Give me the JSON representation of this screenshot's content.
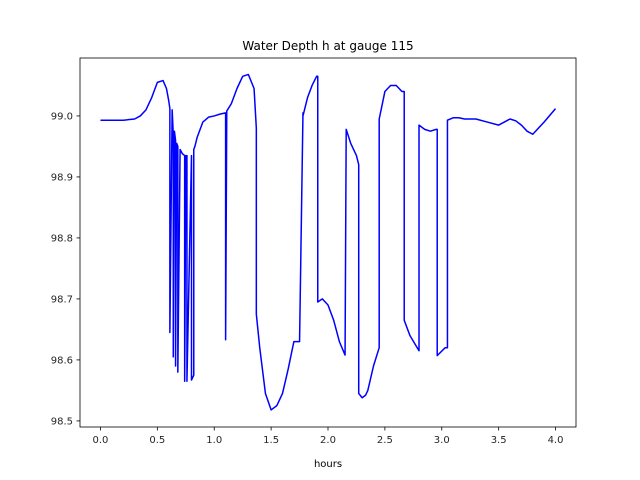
{
  "chart_data": {
    "type": "line",
    "title": "Water Depth h at gauge 115",
    "xlabel": "hours",
    "ylabel": "",
    "xlim": [
      -0.18,
      4.18
    ],
    "ylim": [
      98.49,
      99.095
    ],
    "xticks": [
      0.0,
      0.5,
      1.0,
      1.5,
      2.0,
      2.5,
      3.0,
      3.5,
      4.0
    ],
    "xtick_labels": [
      "0.0",
      "0.5",
      "1.0",
      "1.5",
      "2.0",
      "2.5",
      "3.0",
      "3.5",
      "4.0"
    ],
    "yticks": [
      98.5,
      98.6,
      98.7,
      98.8,
      98.9,
      99.0
    ],
    "ytick_labels": [
      "98.5",
      "98.6",
      "98.7",
      "98.8",
      "98.9",
      "99.0"
    ],
    "grid": false,
    "series": [
      {
        "color": "#0000ff",
        "x": [
          0.0,
          0.1,
          0.2,
          0.3,
          0.35,
          0.4,
          0.45,
          0.5,
          0.55,
          0.58,
          0.6,
          0.61,
          0.61,
          0.63,
          0.64,
          0.64,
          0.65,
          0.66,
          0.66,
          0.67,
          0.68,
          0.68,
          0.7,
          0.72,
          0.74,
          0.74,
          0.75,
          0.76,
          0.76,
          0.8,
          0.8,
          0.82,
          0.82,
          0.83,
          0.85,
          0.9,
          0.95,
          1.0,
          1.05,
          1.1,
          1.1,
          1.11,
          1.11,
          1.15,
          1.2,
          1.25,
          1.3,
          1.35,
          1.37,
          1.37,
          1.4,
          1.45,
          1.5,
          1.55,
          1.6,
          1.65,
          1.7,
          1.75,
          1.78,
          1.78,
          1.82,
          1.86,
          1.9,
          1.91,
          1.91,
          1.95,
          2.0,
          2.05,
          2.1,
          2.15,
          2.16,
          2.16,
          2.2,
          2.25,
          2.27,
          2.27,
          2.3,
          2.33,
          2.35,
          2.4,
          2.45,
          2.45,
          2.5,
          2.55,
          2.6,
          2.65,
          2.67,
          2.67,
          2.72,
          2.8,
          2.8,
          2.85,
          2.9,
          2.95,
          2.96,
          2.96,
          3.03,
          3.05,
          3.05,
          3.1,
          3.15,
          3.2,
          3.3,
          3.4,
          3.5,
          3.55,
          3.6,
          3.65,
          3.7,
          3.75,
          3.8,
          3.85,
          3.9,
          4.0
        ],
        "y": [
          98.993,
          98.993,
          98.993,
          98.995,
          99.0,
          99.01,
          99.03,
          99.055,
          99.058,
          99.045,
          99.025,
          99.012,
          98.645,
          99.01,
          98.97,
          98.605,
          98.975,
          98.96,
          98.59,
          98.955,
          98.95,
          98.58,
          98.945,
          98.938,
          98.935,
          98.565,
          98.935,
          98.935,
          98.565,
          98.935,
          98.567,
          98.575,
          98.945,
          98.95,
          98.965,
          98.99,
          98.998,
          99.0,
          99.003,
          99.005,
          98.633,
          99.005,
          99.008,
          99.02,
          99.045,
          99.065,
          99.068,
          99.045,
          98.98,
          98.675,
          98.62,
          98.545,
          98.518,
          98.525,
          98.545,
          98.585,
          98.63,
          98.63,
          99.005,
          99.0,
          99.03,
          99.05,
          99.065,
          99.065,
          98.695,
          98.7,
          98.69,
          98.665,
          98.63,
          98.608,
          98.978,
          98.978,
          98.955,
          98.935,
          98.92,
          98.545,
          98.538,
          98.542,
          98.55,
          98.59,
          98.62,
          98.995,
          99.04,
          99.05,
          99.05,
          99.04,
          99.04,
          98.665,
          98.64,
          98.615,
          98.985,
          98.978,
          98.975,
          98.978,
          98.978,
          98.607,
          98.62,
          98.62,
          98.993,
          98.997,
          98.997,
          98.995,
          98.995,
          98.99,
          98.985,
          98.99,
          98.995,
          98.992,
          98.985,
          98.975,
          98.97,
          98.98,
          98.99,
          99.012
        ]
      }
    ]
  }
}
